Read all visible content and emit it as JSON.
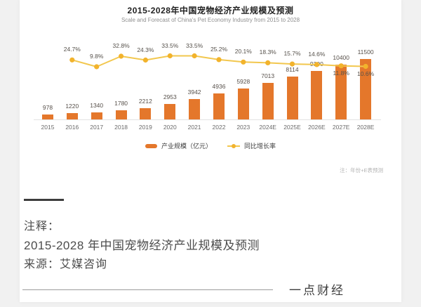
{
  "chart": {
    "title": "2015-2028年中国宠物经济产业规模及预测",
    "subtitle": "Scale and Forecast of China's Pet Economy Industry from 2015 to 2028",
    "legend": [
      "产业规模（亿元）",
      "同比增长率"
    ],
    "note": "注：年份+E表预测"
  },
  "chart_data": {
    "type": "bar",
    "title": "2015-2028年中国宠物经济产业规模及预测",
    "subtitle": "Scale and Forecast of China's Pet Economy Industry from 2015 to 2028",
    "categories": [
      "2015",
      "2016",
      "2017",
      "2018",
      "2019",
      "2020",
      "2021",
      "2022",
      "2023",
      "2024E",
      "2025E",
      "2026E",
      "2027E",
      "2028E"
    ],
    "series": [
      {
        "name": "产业规模（亿元）",
        "type": "bar",
        "color": "#E4772B",
        "values": [
          978,
          1220,
          1340,
          1780,
          2212,
          2953,
          3942,
          4936,
          5928,
          7013,
          8114,
          9300,
          10400,
          11500
        ]
      },
      {
        "name": "同比增长率",
        "type": "line",
        "unit": "%",
        "color": "#F2C74E",
        "dot_color": "#F2B32C",
        "start_category_index": 1,
        "values": [
          24.7,
          9.8,
          32.8,
          24.3,
          33.5,
          33.5,
          25.2,
          20.1,
          18.3,
          15.7,
          14.6,
          11.8,
          10.6
        ],
        "labels": [
          "24.7%",
          "9.8%",
          "32.8%",
          "24.3%",
          "33.5%",
          "33.5%",
          "25.2%",
          "20.1%",
          "18.3%",
          "15.7%",
          "14.6%",
          "11.8%",
          "10.6%"
        ]
      }
    ],
    "value_labels": true,
    "grid": false,
    "legend_position": "bottom",
    "note": "注：年份+E表预测",
    "ylim_bar": [
      0,
      11500
    ],
    "ylim_line_pct": [
      0,
      35
    ]
  },
  "footer": {
    "label": "注释：",
    "caption": "2015-2028 年中国宠物经济产业规模及预测",
    "source": "来源：艾媒咨询",
    "brand": "一点财经"
  },
  "colors": {
    "bar": "#E4772B",
    "line": "#F2C74E",
    "dot": "#F2B32C",
    "title": "#1f1f1f",
    "subtitle": "#8f8f8f",
    "footer_text": "#4c4c4c"
  }
}
